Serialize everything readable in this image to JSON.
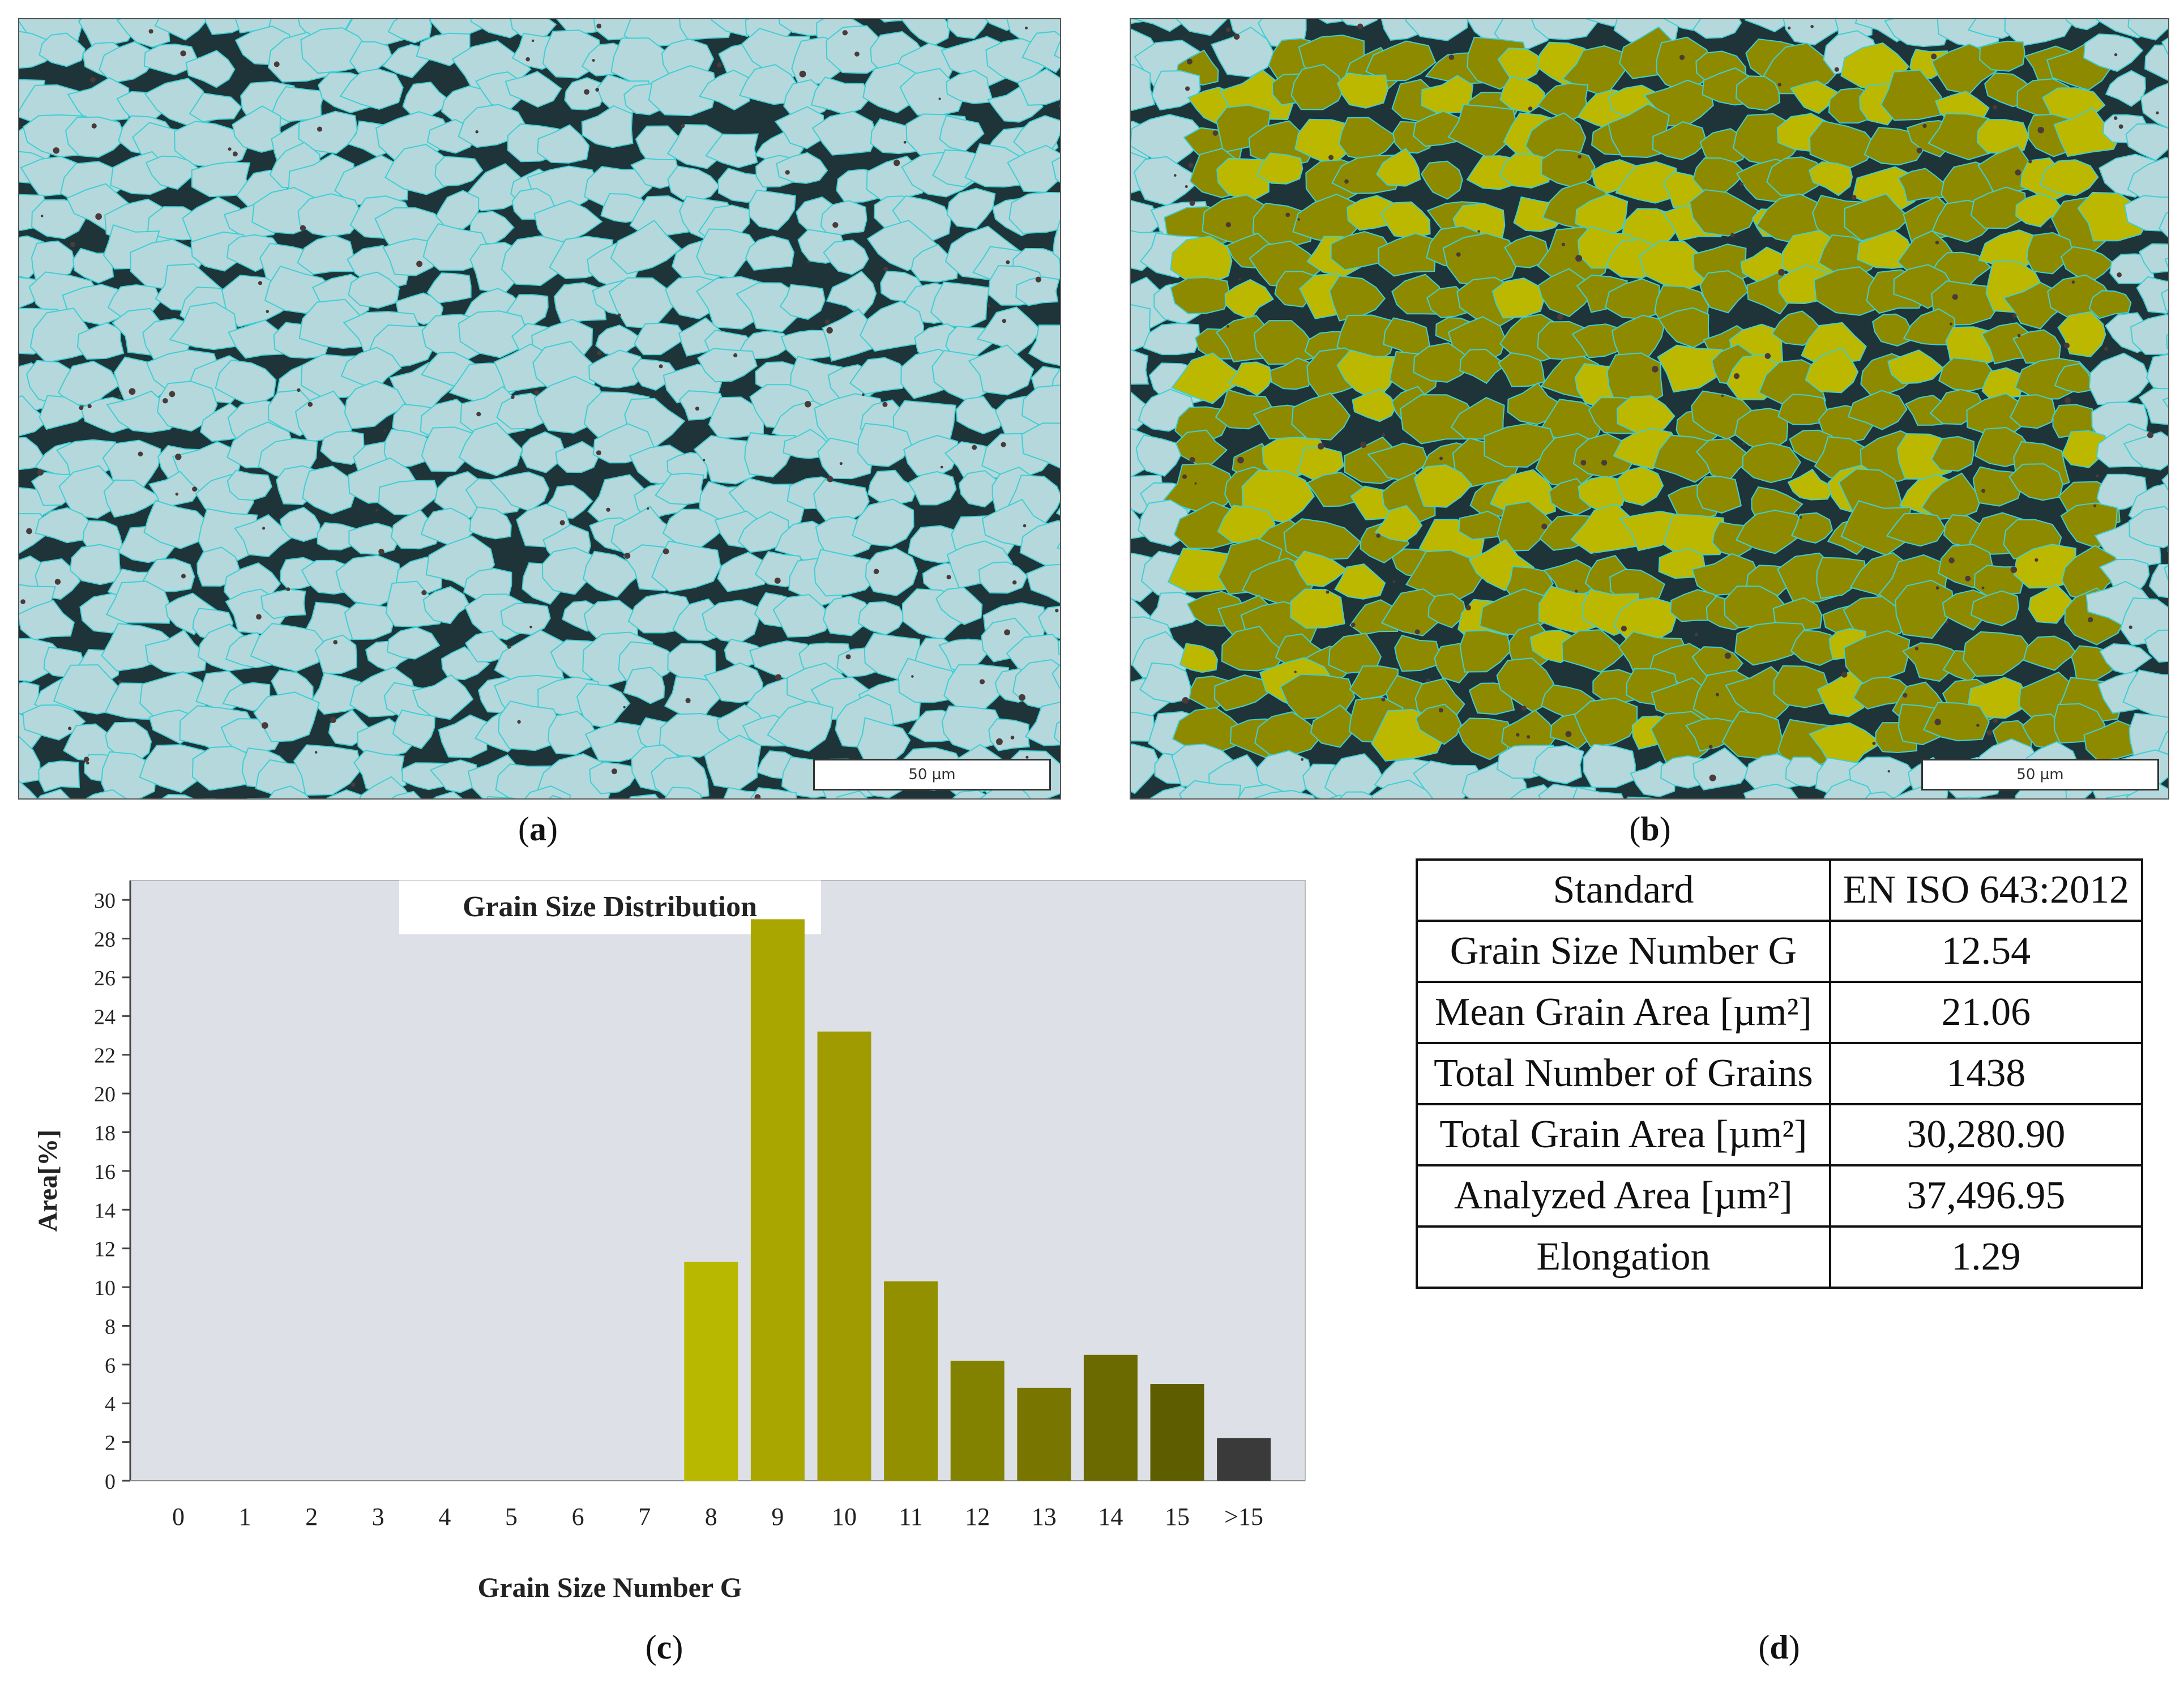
{
  "panels": {
    "a": {
      "caption_letter": "a",
      "scale_bar": "50 µm"
    },
    "b": {
      "caption_letter": "b",
      "scale_bar": "50 µm"
    },
    "c": {
      "caption_letter": "c"
    },
    "d": {
      "caption_letter": "d"
    }
  },
  "colors": {
    "background_plot": "#dde0e7",
    "grain_fill": "#b5d8dc",
    "grain_boundary": "#3fcfd4",
    "overlay_light": "#bcb800",
    "overlay_dark": "#8e8a00"
  },
  "chart_data": {
    "type": "bar",
    "title": "Grain Size Distribution",
    "xlabel": "Grain Size Number G",
    "ylabel": "Area[%]",
    "ylim": [
      0,
      31
    ],
    "yticks": [
      0,
      2,
      4,
      6,
      8,
      10,
      12,
      14,
      16,
      18,
      20,
      22,
      24,
      26,
      28,
      30
    ],
    "categories": [
      "0",
      "1",
      "2",
      "3",
      "4",
      "5",
      "6",
      "7",
      "8",
      "9",
      "10",
      "11",
      "12",
      "13",
      "14",
      "15",
      ">15"
    ],
    "values": [
      0,
      0,
      0,
      0,
      0,
      0,
      0,
      0,
      11.3,
      29,
      23.2,
      10.3,
      6.2,
      4.8,
      6.5,
      5.0,
      2.2
    ],
    "bar_colors": [
      "#b9b800",
      "#b9b800",
      "#b9b800",
      "#b9b800",
      "#b9b800",
      "#b9b800",
      "#b9b800",
      "#b9b800",
      "#b9b800",
      "#aaa600",
      "#9f9b00",
      "#939000",
      "#838200",
      "#787600",
      "#6b6a00",
      "#5e5d00",
      "#3a3a3a"
    ],
    "grid": false,
    "legend": "none"
  },
  "table": {
    "rows": [
      {
        "label": "Standard",
        "value": "EN ISO 643:2012"
      },
      {
        "label": "Grain Size Number G",
        "value": "12.54"
      },
      {
        "label": "Mean Grain Area [µm²]",
        "value": "21.06"
      },
      {
        "label": "Total Number of Grains",
        "value": "1438"
      },
      {
        "label": "Total Grain Area [µm²]",
        "value": "30,280.90"
      },
      {
        "label": "Analyzed Area [µm²]",
        "value": "37,496.95"
      },
      {
        "label": "Elongation",
        "value": "1.29"
      }
    ]
  }
}
